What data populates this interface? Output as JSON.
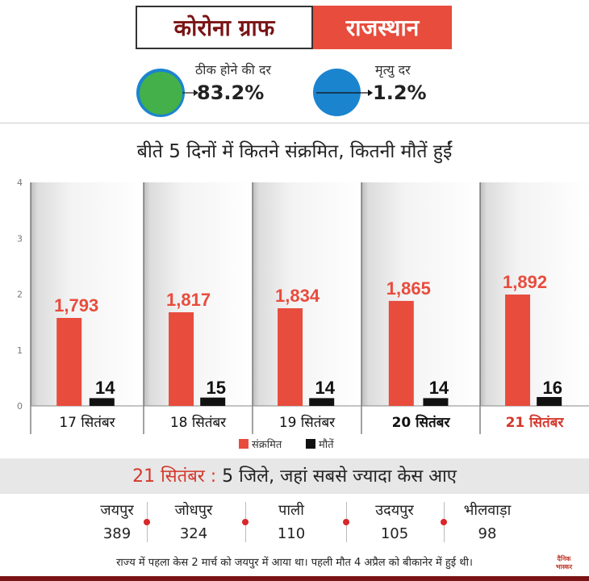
{
  "header": {
    "title": "कोरोना ग्राफ",
    "state": "राजस्थान"
  },
  "rates": {
    "recovery_label": "ठीक होने की दर",
    "recovery_value": "83.2%",
    "death_label": "मृत्यु दर",
    "death_value": "1.2%"
  },
  "colors": {
    "cases": "#e84c3d",
    "deaths": "#111111",
    "highlight": "#d4382c",
    "brand_dark": "#7a1416"
  },
  "chart_data": {
    "type": "bar",
    "title": "बीते 5 दिनों में कितने संक्रमित, कितनी मौतें हुईं",
    "categories": [
      "17 सितंबर",
      "18 सितंबर",
      "19 सितंबर",
      "20 सितंबर",
      "21 सितंबर"
    ],
    "highlight_category": "21 सितंबर",
    "series": [
      {
        "name": "संक्रमित",
        "values": [
          1793,
          1817,
          1834,
          1865,
          1892
        ],
        "labels": [
          "1,793",
          "1,817",
          "1,834",
          "1,865",
          "1,892"
        ]
      },
      {
        "name": "मौतें",
        "values": [
          14,
          15,
          14,
          14,
          16
        ],
        "labels": [
          "14",
          "15",
          "14",
          "14",
          "16"
        ]
      }
    ],
    "y_ticks": [
      "0",
      "1",
      "2",
      "3",
      "4"
    ],
    "ylim": [
      0,
      4
    ],
    "grid": false,
    "legend": "bottom-center"
  },
  "districts": {
    "date": "21 सितंबर :",
    "heading": " 5 जिले, जहां सबसे ज्यादा केस आए",
    "items": [
      {
        "name": "जयपुर",
        "count": "389"
      },
      {
        "name": "जोधपुर",
        "count": "324"
      },
      {
        "name": "पाली",
        "count": "110"
      },
      {
        "name": "उदयपुर",
        "count": "105"
      },
      {
        "name": "भीलवाड़ा",
        "count": "98"
      }
    ]
  },
  "footnote": "राज्य में पहला केस 2 मार्च को जयपुर में आया था। पहली मौत 4 अप्रैल को बीकानेर में हुई थी।",
  "logo": {
    "line1": "दैनिक",
    "line2": "भास्कर"
  }
}
